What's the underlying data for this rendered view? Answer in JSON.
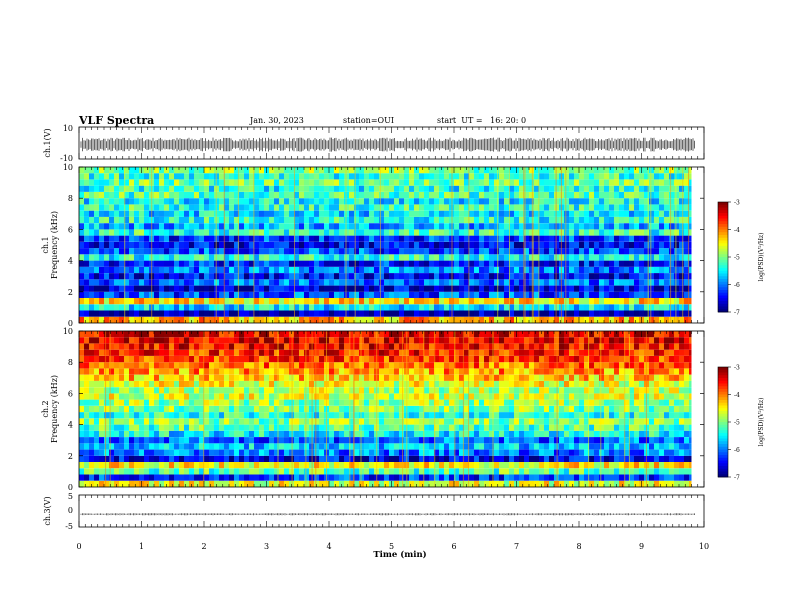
{
  "header": {
    "title": "VLF Spectra",
    "date": "Jan. 30, 2023",
    "station": "station=OUI",
    "start": "start  UT =   16: 20: 0"
  },
  "chart_data": [
    {
      "type": "line",
      "panel": "ch1-waveform",
      "ylabel": "ch.1(V)",
      "yticks": [
        "10",
        "-10"
      ],
      "ylim": [
        -10,
        10
      ],
      "xlim": [
        0,
        10
      ],
      "signal_level_V": -1,
      "signal_amplitude_V": 4,
      "color": "#000000"
    },
    {
      "type": "heatmap",
      "panel": "ch1-spectrogram",
      "ylabel_top": "ch.1",
      "ylabel": "Frequency (kHz)",
      "yticks": [
        "0",
        "2",
        "4",
        "6",
        "8",
        "10"
      ],
      "ylim": [
        0,
        10
      ],
      "xlim": [
        0,
        10
      ],
      "data_end_min": 9.8,
      "colorbar": {
        "label": "log(PSD)(V²/Hz)",
        "ticks": [
          "-3",
          "-4",
          "-5",
          "-6",
          "-7"
        ],
        "range": [
          -7,
          -3
        ]
      },
      "bands": [
        {
          "f0": 0,
          "f1": 0.4,
          "v": -4.2
        },
        {
          "f0": 0.4,
          "f1": 0.8,
          "v": -6.9
        },
        {
          "f0": 0.8,
          "f1": 1.2,
          "v": -5.6
        },
        {
          "f0": 1.2,
          "f1": 1.6,
          "v": -4.4
        },
        {
          "f0": 1.6,
          "f1": 2.0,
          "v": -6.2
        },
        {
          "f0": 2.0,
          "f1": 2.4,
          "v": -6.7
        },
        {
          "f0": 2.4,
          "f1": 2.8,
          "v": -6.1
        },
        {
          "f0": 2.8,
          "f1": 3.2,
          "v": -6.5
        },
        {
          "f0": 3.2,
          "f1": 3.6,
          "v": -6.0
        },
        {
          "f0": 3.6,
          "f1": 4.0,
          "v": -6.4
        },
        {
          "f0": 4.0,
          "f1": 4.4,
          "v": -5.4
        },
        {
          "f0": 4.4,
          "f1": 4.8,
          "v": -6.2
        },
        {
          "f0": 4.8,
          "f1": 5.2,
          "v": -6.6
        },
        {
          "f0": 5.2,
          "f1": 5.6,
          "v": -6.3
        },
        {
          "f0": 5.6,
          "f1": 6.0,
          "v": -5.3
        },
        {
          "f0": 6.0,
          "f1": 6.4,
          "v": -5.8
        },
        {
          "f0": 6.4,
          "f1": 6.8,
          "v": -5.4
        },
        {
          "f0": 6.8,
          "f1": 7.2,
          "v": -5.6
        },
        {
          "f0": 7.2,
          "f1": 7.6,
          "v": -5.3
        },
        {
          "f0": 7.6,
          "f1": 8.0,
          "v": -5.5
        },
        {
          "f0": 8.0,
          "f1": 8.4,
          "v": -5.2
        },
        {
          "f0": 8.4,
          "f1": 8.8,
          "v": -5.4
        },
        {
          "f0": 8.8,
          "f1": 9.2,
          "v": -5.1
        },
        {
          "f0": 9.2,
          "f1": 9.6,
          "v": -5.3
        },
        {
          "f0": 9.6,
          "f1": 10.0,
          "v": -5.0
        }
      ]
    },
    {
      "type": "heatmap",
      "panel": "ch2-spectrogram",
      "ylabel_top": "ch.2",
      "ylabel": "Frequency (kHz)",
      "yticks": [
        "0",
        "2",
        "4",
        "6",
        "8",
        "10"
      ],
      "ylim": [
        0,
        10
      ],
      "xlim": [
        0,
        10
      ],
      "data_end_min": 9.8,
      "colorbar": {
        "label": "log(PSD)(V²/Hz)",
        "ticks": [
          "-3",
          "-4",
          "-5",
          "-6",
          "-7"
        ],
        "range": [
          -7,
          -3
        ]
      },
      "bands": [
        {
          "f0": 0,
          "f1": 0.4,
          "v": -4.6
        },
        {
          "f0": 0.4,
          "f1": 0.8,
          "v": -6.3
        },
        {
          "f0": 0.8,
          "f1": 1.2,
          "v": -5.2
        },
        {
          "f0": 1.2,
          "f1": 1.6,
          "v": -4.5
        },
        {
          "f0": 1.6,
          "f1": 2.0,
          "v": -6.6
        },
        {
          "f0": 2.0,
          "f1": 2.4,
          "v": -6.0
        },
        {
          "f0": 2.4,
          "f1": 2.8,
          "v": -5.7
        },
        {
          "f0": 2.8,
          "f1": 3.2,
          "v": -6.1
        },
        {
          "f0": 3.2,
          "f1": 3.6,
          "v": -5.5
        },
        {
          "f0": 3.6,
          "f1": 4.0,
          "v": -5.2
        },
        {
          "f0": 4.0,
          "f1": 4.4,
          "v": -5.0
        },
        {
          "f0": 4.4,
          "f1": 4.8,
          "v": -5.4
        },
        {
          "f0": 4.8,
          "f1": 5.2,
          "v": -5.0
        },
        {
          "f0": 5.2,
          "f1": 5.6,
          "v": -4.9
        },
        {
          "f0": 5.6,
          "f1": 6.0,
          "v": -4.7
        },
        {
          "f0": 6.0,
          "f1": 6.4,
          "v": -4.8
        },
        {
          "f0": 6.4,
          "f1": 6.8,
          "v": -4.6
        },
        {
          "f0": 6.8,
          "f1": 7.2,
          "v": -4.3
        },
        {
          "f0": 7.2,
          "f1": 7.6,
          "v": -4.1
        },
        {
          "f0": 7.6,
          "f1": 8.0,
          "v": -3.9
        },
        {
          "f0": 8.0,
          "f1": 8.4,
          "v": -3.7
        },
        {
          "f0": 8.4,
          "f1": 8.8,
          "v": -3.6
        },
        {
          "f0": 8.8,
          "f1": 9.2,
          "v": -3.5
        },
        {
          "f0": 9.2,
          "f1": 9.6,
          "v": -3.4
        },
        {
          "f0": 9.6,
          "f1": 10.0,
          "v": -3.4
        }
      ]
    },
    {
      "type": "line",
      "panel": "ch3-waveform",
      "ylabel": "ch.3(V)",
      "yticks": [
        "5",
        "0",
        "-5"
      ],
      "ylim": [
        -5,
        5
      ],
      "xlim": [
        0,
        10
      ],
      "signal_level_V": -1,
      "signal_amplitude_V": 0.3,
      "xlabel": "Time (min)",
      "xticks": [
        "0",
        "1",
        "2",
        "3",
        "4",
        "5",
        "6",
        "7",
        "8",
        "9",
        "10"
      ]
    }
  ]
}
